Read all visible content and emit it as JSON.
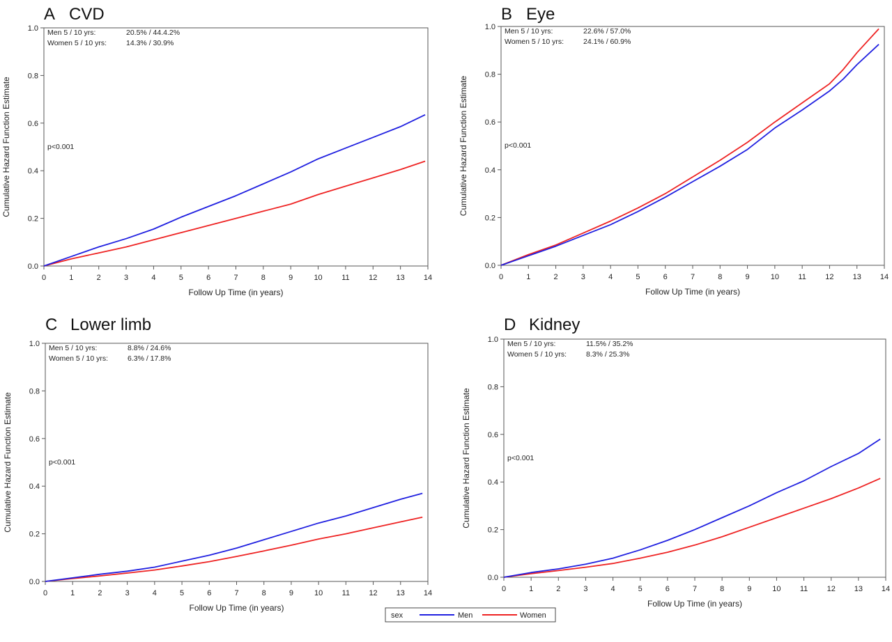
{
  "colors": {
    "men": "#1f1fe0",
    "women": "#ee2222",
    "axis": "#555555"
  },
  "legend": {
    "title": "sex",
    "entries": [
      "Men",
      "Women"
    ]
  },
  "chart_data": [
    {
      "type": "line",
      "panel_label": "A",
      "title": "CVD",
      "xlabel": "Follow Up Time (in years)",
      "ylabel": "Cumulative Hazard Function Estimate",
      "xlim": [
        0,
        14
      ],
      "ylim": [
        0,
        1.0
      ],
      "xticks": [
        0,
        1,
        2,
        3,
        4,
        5,
        6,
        7,
        8,
        9,
        10,
        11,
        12,
        13,
        14
      ],
      "yticks": [
        "0.0",
        "0.2",
        "0.4",
        "0.6",
        "0.8",
        "1.0"
      ],
      "annotations": {
        "men_label": "Men 5 / 10 yrs:",
        "men_value": "20.5% / 44.4.2%",
        "women_label": "Women 5 / 10 yrs:",
        "women_value": "14.3% / 30.9%",
        "pvalue": "p<0.001"
      },
      "series": [
        {
          "name": "Men",
          "x": [
            0,
            1,
            2,
            3,
            4,
            5,
            6,
            7,
            8,
            9,
            10,
            11,
            12,
            13,
            13.9
          ],
          "y": [
            0,
            0.04,
            0.08,
            0.115,
            0.155,
            0.205,
            0.25,
            0.295,
            0.345,
            0.395,
            0.45,
            0.495,
            0.54,
            0.585,
            0.635
          ]
        },
        {
          "name": "Women",
          "x": [
            0,
            1,
            2,
            3,
            4,
            5,
            6,
            7,
            8,
            9,
            10,
            11,
            12,
            13,
            13.9
          ],
          "y": [
            0,
            0.03,
            0.055,
            0.08,
            0.11,
            0.14,
            0.17,
            0.2,
            0.23,
            0.26,
            0.3,
            0.335,
            0.37,
            0.405,
            0.44
          ]
        }
      ]
    },
    {
      "type": "line",
      "panel_label": "B",
      "title": "Eye",
      "xlabel": "Follow Up Time (in years)",
      "ylabel": "Cumulative Hazard Function Estimate",
      "xlim": [
        0,
        14
      ],
      "ylim": [
        0,
        1.0
      ],
      "xticks": [
        0,
        1,
        2,
        3,
        4,
        5,
        6,
        7,
        8,
        9,
        10,
        11,
        12,
        13,
        14
      ],
      "yticks": [
        "0.0",
        "0.2",
        "0.4",
        "0.6",
        "0.8",
        "1.0"
      ],
      "annotations": {
        "men_label": "Men 5 / 10 yrs:",
        "men_value": "22.6% / 57.0%",
        "women_label": "Women 5 / 10 yrs:",
        "women_value": "24.1% / 60.9%",
        "pvalue": "p<0.001"
      },
      "series": [
        {
          "name": "Men",
          "x": [
            0,
            1,
            2,
            3,
            4,
            5,
            6,
            7,
            8,
            9,
            10,
            11,
            12,
            12.5,
            13,
            13.8
          ],
          "y": [
            0,
            0.04,
            0.08,
            0.125,
            0.17,
            0.225,
            0.285,
            0.35,
            0.415,
            0.485,
            0.575,
            0.65,
            0.73,
            0.78,
            0.84,
            0.925
          ]
        },
        {
          "name": "Women",
          "x": [
            0,
            1,
            2,
            3,
            4,
            5,
            6,
            7,
            8,
            9,
            10,
            11,
            12,
            12.5,
            13,
            13.8
          ],
          "y": [
            0,
            0.045,
            0.085,
            0.135,
            0.185,
            0.24,
            0.3,
            0.37,
            0.44,
            0.515,
            0.6,
            0.68,
            0.76,
            0.82,
            0.89,
            0.99
          ]
        }
      ]
    },
    {
      "type": "line",
      "panel_label": "C",
      "title": "Lower limb",
      "xlabel": "Follow Up Time (in years)",
      "ylabel": "Cumulative Hazard Function Estimate",
      "xlim": [
        0,
        14
      ],
      "ylim": [
        0,
        1.0
      ],
      "xticks": [
        0,
        1,
        2,
        3,
        4,
        5,
        6,
        7,
        8,
        9,
        10,
        11,
        12,
        13,
        14
      ],
      "yticks": [
        "0.0",
        "0.2",
        "0.4",
        "0.6",
        "0.8",
        "1.0"
      ],
      "annotations": {
        "men_label": "Men 5 / 10 yrs:",
        "men_value": "8.8% / 24.6%",
        "women_label": "Women 5 / 10 yrs:",
        "women_value": "6.3% / 17.8%",
        "pvalue": "p<0.001"
      },
      "series": [
        {
          "name": "Men",
          "x": [
            0,
            1,
            2,
            3,
            4,
            5,
            6,
            7,
            8,
            9,
            10,
            11,
            12,
            13,
            13.8
          ],
          "y": [
            0,
            0.015,
            0.03,
            0.043,
            0.06,
            0.085,
            0.11,
            0.14,
            0.175,
            0.21,
            0.245,
            0.275,
            0.31,
            0.345,
            0.37
          ]
        },
        {
          "name": "Women",
          "x": [
            0,
            1,
            2,
            3,
            4,
            5,
            6,
            7,
            8,
            9,
            10,
            11,
            12,
            13,
            13.8
          ],
          "y": [
            0,
            0.012,
            0.023,
            0.035,
            0.048,
            0.065,
            0.083,
            0.105,
            0.128,
            0.152,
            0.178,
            0.2,
            0.225,
            0.25,
            0.27
          ]
        }
      ]
    },
    {
      "type": "line",
      "panel_label": "D",
      "title": "Kidney",
      "xlabel": "Follow Up Time (in years)",
      "ylabel": "Cumulative Hazard Function Estimate",
      "xlim": [
        0,
        14
      ],
      "ylim": [
        0,
        1.0
      ],
      "xticks": [
        0,
        1,
        2,
        3,
        4,
        5,
        6,
        7,
        8,
        9,
        10,
        11,
        12,
        13,
        14
      ],
      "yticks": [
        "0.0",
        "0.2",
        "0.4",
        "0.6",
        "0.8",
        "1.0"
      ],
      "annotations": {
        "men_label": "Men 5 / 10 yrs:",
        "men_value": "11.5% / 35.2%",
        "women_label": "Women 5 / 10 yrs:",
        "women_value": "8.3% / 25.3%",
        "pvalue": "p<0.001"
      },
      "series": [
        {
          "name": "Men",
          "x": [
            0,
            1,
            2,
            3,
            4,
            5,
            6,
            7,
            8,
            9,
            10,
            11,
            12,
            13,
            13.8
          ],
          "y": [
            0,
            0.02,
            0.035,
            0.055,
            0.08,
            0.115,
            0.155,
            0.2,
            0.25,
            0.3,
            0.355,
            0.405,
            0.465,
            0.52,
            0.58
          ]
        },
        {
          "name": "Women",
          "x": [
            0,
            1,
            2,
            3,
            4,
            5,
            6,
            7,
            8,
            9,
            10,
            11,
            12,
            13,
            13.8
          ],
          "y": [
            0,
            0.015,
            0.028,
            0.042,
            0.058,
            0.08,
            0.105,
            0.135,
            0.17,
            0.21,
            0.25,
            0.29,
            0.33,
            0.375,
            0.415
          ]
        }
      ]
    }
  ]
}
